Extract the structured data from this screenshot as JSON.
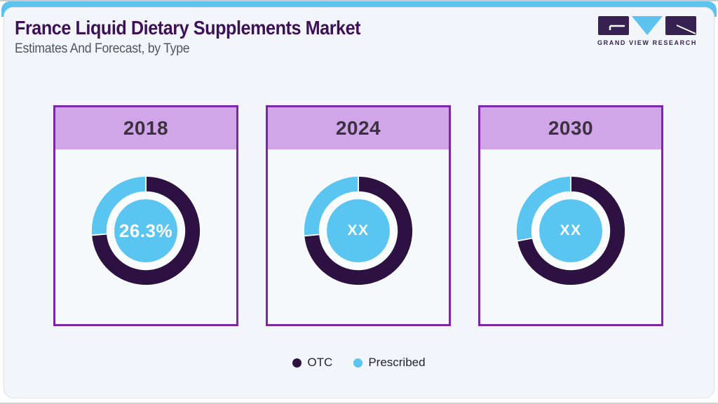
{
  "page": {
    "title": "France Liquid Dietary Supplements Market",
    "subtitle": "Estimates And Forecast, by Type"
  },
  "logo": {
    "name": "grand-view-research",
    "text": "GRAND VIEW RESEARCH"
  },
  "colors": {
    "topbar": "#5cc3ef",
    "otc": "#2d1142",
    "prescribed": "#5bc5f2",
    "card_border": "#7c28a6",
    "card_header_bg": "#d1a6e9",
    "title": "#3c1156",
    "subtitle": "#50565e",
    "year_text": "#3a333f",
    "logo_purple": "#372153",
    "logo_triangle": "#5cc3ef",
    "panel_bg": "#f2f6fa",
    "card_bg": "#f5f9fc",
    "center_label": "#ffffff"
  },
  "legend": [
    {
      "label": "OTC",
      "series": "OTC"
    },
    {
      "label": "Prescribed",
      "series": "Prescribed"
    }
  ],
  "chart_data": {
    "type": "pie",
    "subtype": "donut-small-multiples",
    "series_names": [
      "OTC",
      "Prescribed"
    ],
    "legend_position": "bottom",
    "charts": [
      {
        "year": "2018",
        "center_label": "26.3%",
        "segments": [
          {
            "name": "OTC",
            "pct": 73.7
          },
          {
            "name": "Prescribed",
            "pct": 26.3
          }
        ]
      },
      {
        "year": "2024",
        "center_label": "XX",
        "segments": [
          {
            "name": "OTC",
            "pct": 73.5,
            "estimated": true
          },
          {
            "name": "Prescribed",
            "pct": 26.5,
            "estimated": true
          }
        ]
      },
      {
        "year": "2030",
        "center_label": "XX",
        "segments": [
          {
            "name": "OTC",
            "pct": 72.0,
            "estimated": true
          },
          {
            "name": "Prescribed",
            "pct": 28.0,
            "estimated": true
          }
        ]
      }
    ]
  }
}
